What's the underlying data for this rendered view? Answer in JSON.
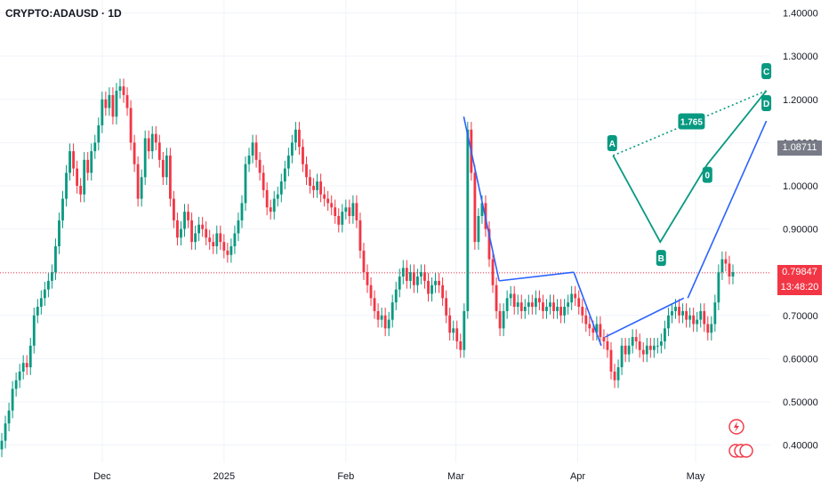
{
  "header": {
    "symbol_title": "CRYPTO:ADAUSD · 1D"
  },
  "price_axis": {
    "ticks": [
      "1.40000",
      "1.30000",
      "1.20000",
      "1.10000",
      "1.00000",
      "0.90000",
      "0.80000",
      "0.70000",
      "0.60000",
      "0.50000",
      "0.40000"
    ]
  },
  "time_axis": {
    "ticks": [
      {
        "label": "Dec",
        "date": "2024-12-01"
      },
      {
        "label": "2025",
        "date": "2025-01-01"
      },
      {
        "label": "Feb",
        "date": "2025-02-01"
      },
      {
        "label": "Mar",
        "date": "2025-03-01"
      },
      {
        "label": "Apr",
        "date": "2025-04-01"
      },
      {
        "label": "May",
        "date": "2025-05-01"
      }
    ]
  },
  "price_tags": {
    "last_price": "0.79847",
    "countdown": "13:48:20",
    "pattern_level": "1.08711",
    "last_color": "#f23645",
    "pattern_color": "#787b86"
  },
  "colors": {
    "up": "#089981",
    "down": "#f23645",
    "trendline": "#2962ff",
    "pattern": "#089981"
  },
  "chart_data": {
    "type": "candlestick",
    "title": "CRYPTO:ADAUSD · 1D",
    "ylim": [
      0.36,
      1.43
    ],
    "x_range": [
      "2024-11-05",
      "2025-05-20"
    ],
    "grid": true,
    "series": [
      {
        "name": "ADAUSD",
        "close": [
          0.41,
          0.45,
          0.48,
          0.53,
          0.55,
          0.57,
          0.59,
          0.58,
          0.63,
          0.7,
          0.72,
          0.74,
          0.76,
          0.78,
          0.8,
          0.86,
          0.92,
          0.97,
          1.03,
          1.08,
          1.04,
          1.0,
          0.98,
          1.06,
          1.03,
          1.08,
          1.1,
          1.14,
          1.2,
          1.18,
          1.21,
          1.16,
          1.22,
          1.23,
          1.21,
          1.18,
          1.1,
          1.05,
          0.97,
          1.02,
          1.11,
          1.08,
          1.12,
          1.1,
          1.06,
          1.02,
          1.07,
          0.97,
          0.92,
          0.88,
          0.9,
          0.94,
          0.92,
          0.87,
          0.89,
          0.91,
          0.9,
          0.88,
          0.87,
          0.86,
          0.89,
          0.87,
          0.85,
          0.84,
          0.86,
          0.89,
          0.92,
          0.96,
          1.05,
          1.07,
          1.1,
          1.06,
          1.03,
          0.99,
          0.95,
          0.94,
          0.97,
          0.98,
          1.01,
          1.04,
          1.07,
          1.1,
          1.13,
          1.09,
          1.05,
          1.02,
          1.0,
          0.99,
          1.01,
          0.98,
          0.97,
          0.96,
          0.95,
          0.93,
          0.91,
          0.94,
          0.95,
          0.93,
          0.96,
          0.92,
          0.85,
          0.8,
          0.77,
          0.74,
          0.71,
          0.69,
          0.7,
          0.67,
          0.69,
          0.73,
          0.76,
          0.79,
          0.81,
          0.78,
          0.8,
          0.77,
          0.79,
          0.8,
          0.78,
          0.75,
          0.77,
          0.78,
          0.77,
          0.74,
          0.7,
          0.66,
          0.67,
          0.64,
          0.62,
          0.71,
          1.13,
          1.03,
          0.87,
          0.93,
          0.96,
          0.9,
          0.83,
          0.77,
          0.71,
          0.67,
          0.71,
          0.74,
          0.75,
          0.72,
          0.73,
          0.71,
          0.72,
          0.73,
          0.72,
          0.74,
          0.73,
          0.71,
          0.72,
          0.73,
          0.71,
          0.72,
          0.7,
          0.72,
          0.73,
          0.75,
          0.74,
          0.72,
          0.7,
          0.68,
          0.67,
          0.66,
          0.68,
          0.65,
          0.64,
          0.62,
          0.57,
          0.55,
          0.58,
          0.63,
          0.61,
          0.63,
          0.65,
          0.64,
          0.62,
          0.61,
          0.63,
          0.62,
          0.63,
          0.63,
          0.64,
          0.67,
          0.7,
          0.71,
          0.72,
          0.7,
          0.71,
          0.69,
          0.7,
          0.68,
          0.69,
          0.71,
          0.68,
          0.66,
          0.68,
          0.73,
          0.8,
          0.83,
          0.82,
          0.79,
          0.8
        ]
      }
    ]
  },
  "annotations": {
    "xabcd": {
      "labels": [
        "A",
        "B",
        "0",
        "C",
        "D"
      ],
      "ratio": "1.765",
      "points": [
        {
          "date": "2025-04-10",
          "price": 1.07
        },
        {
          "date": "2025-04-22",
          "price": 0.87
        },
        {
          "date": "2025-05-04",
          "price": 1.05
        },
        {
          "date": "2025-05-19",
          "price": 1.22
        }
      ]
    },
    "trendlines": [
      {
        "from": {
          "date": "2025-03-03",
          "price": 1.16
        },
        "to": {
          "date": "2025-03-12",
          "price": 0.78
        }
      },
      {
        "from": {
          "date": "2025-03-12",
          "price": 0.78
        },
        "to": {
          "date": "2025-03-31",
          "price": 0.8
        }
      },
      {
        "from": {
          "date": "2025-03-31",
          "price": 0.8
        },
        "to": {
          "date": "2025-04-07",
          "price": 0.63
        }
      },
      {
        "from": {
          "date": "2025-04-08",
          "price": 0.65
        },
        "to": {
          "date": "2025-04-28",
          "price": 0.74
        }
      },
      {
        "from": {
          "date": "2025-04-29",
          "price": 0.74
        },
        "to": {
          "date": "2025-05-19",
          "price": 1.15
        }
      }
    ]
  }
}
